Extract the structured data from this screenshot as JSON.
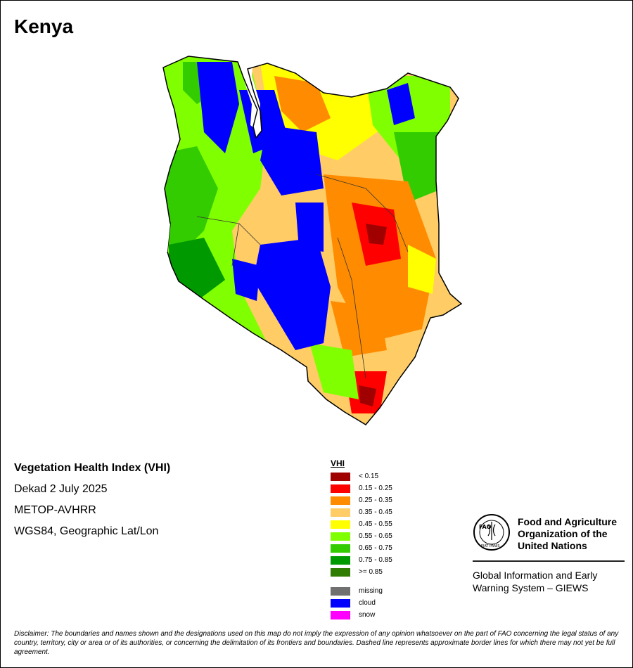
{
  "map": {
    "title": "Kenya",
    "product": "Vegetation Health Index (VHI)",
    "period": "Dekad 2 July 2025",
    "sensor": "METOP-AVHRR",
    "projection": "WGS84, Geographic Lat/Lon"
  },
  "legend": {
    "title": "VHI",
    "classes": [
      {
        "label": "< 0.15",
        "color": "#a00000"
      },
      {
        "label": "0.15 - 0.25",
        "color": "#ff0000"
      },
      {
        "label": "0.25 - 0.35",
        "color": "#ff8c00"
      },
      {
        "label": "0.35 - 0.45",
        "color": "#ffcc66"
      },
      {
        "label": "0.45 - 0.55",
        "color": "#ffff00"
      },
      {
        "label": "0.55 - 0.65",
        "color": "#80ff00"
      },
      {
        "label": "0.65 - 0.75",
        "color": "#33cc00"
      },
      {
        "label": "0.75 - 0.85",
        "color": "#009900"
      },
      {
        "label": ">= 0.85",
        "color": "#2e7d00"
      }
    ],
    "special": [
      {
        "label": "missing",
        "color": "#707070"
      },
      {
        "label": "cloud",
        "color": "#0000ff"
      },
      {
        "label": "snow",
        "color": "#ff00ff"
      }
    ]
  },
  "organization": {
    "line1": "Food and Agriculture",
    "line2": "Organization of the",
    "line3": "United Nations",
    "system_line1": "Global Information and Early",
    "system_line2": "Warning System – GIEWS",
    "logo_text": "FAO",
    "logo_motto": "FIAT PANIS"
  },
  "disclaimer": "Disclaimer: The boundaries and names shown and the designations used on this map do not imply the expression of any opinion whatsoever on the part of FAO concerning the legal status of any country, territory, city or area or of its authorities, or concerning the delimitation of its frontiers and boundaries. Dashed line represents approximate border lines for which there may not yet be full agreement."
}
